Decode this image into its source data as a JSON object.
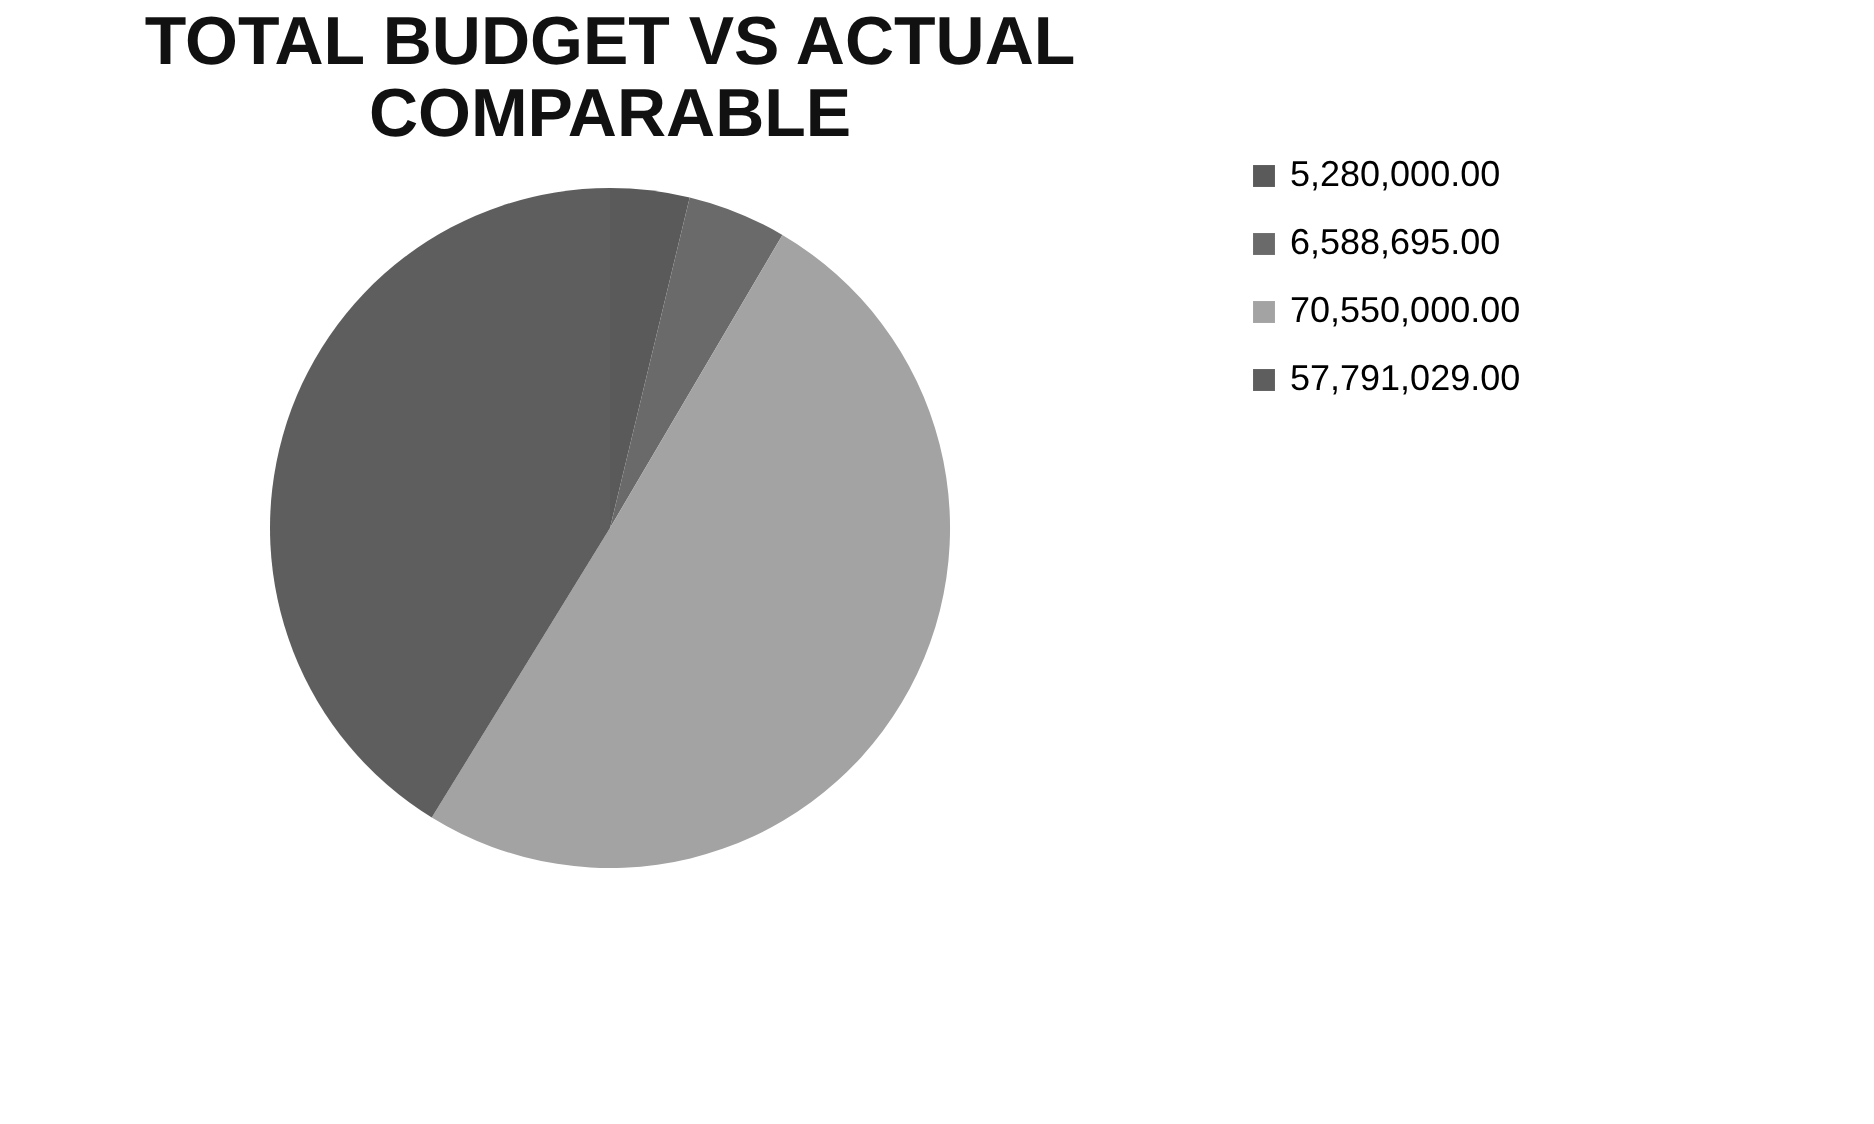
{
  "chart_data": {
    "type": "pie",
    "title": [
      "TOTAL BUDGET VS ACTUAL",
      "COMPARABLE"
    ],
    "categories": [
      "5,280,000.00",
      "6,588,695.00",
      "70,550,000.00",
      "57,791,029.00"
    ],
    "values": [
      5280000,
      6588695,
      70550000,
      57791029
    ],
    "colors": [
      "#5a5a5a",
      "#6a6a6a",
      "#a3a3a3",
      "#5e5e5e"
    ],
    "legend": "right"
  }
}
